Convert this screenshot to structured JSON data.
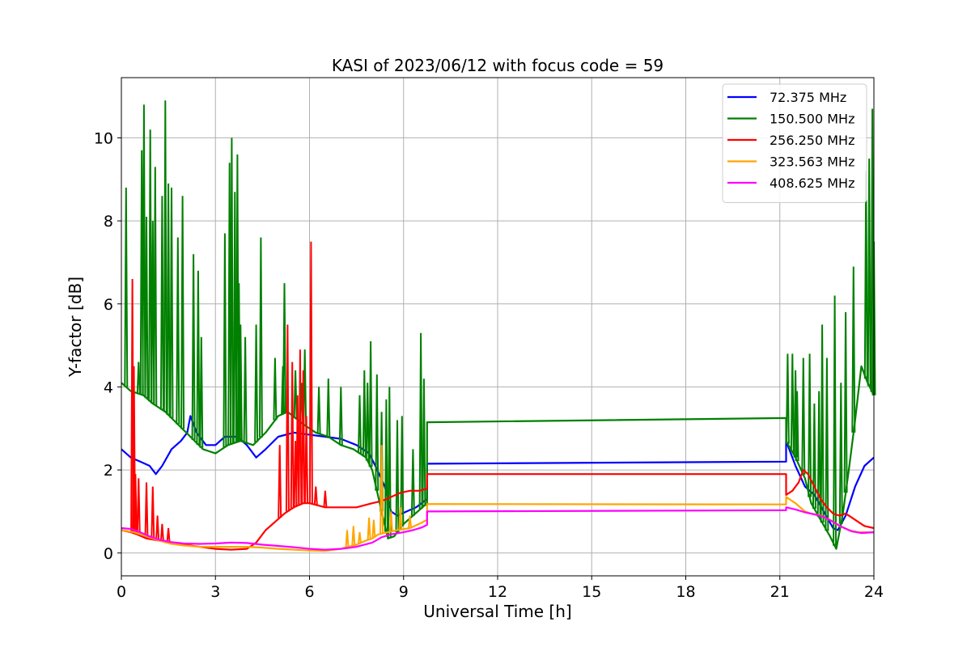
{
  "chart_data": {
    "type": "line",
    "title": "KASI of 2023/06/12 with focus code = 59",
    "xlabel": "Universal Time [h]",
    "ylabel": "Y-factor [dB]",
    "xlim": [
      0,
      24
    ],
    "ylim": [
      -0.55,
      11.45
    ],
    "xticks": [
      0,
      3,
      6,
      9,
      12,
      15,
      18,
      21,
      24
    ],
    "xtick_labels": [
      "0",
      "3",
      "6",
      "9",
      "12",
      "15",
      "18",
      "21",
      "24"
    ],
    "yticks": [
      0,
      2,
      4,
      6,
      8,
      10
    ],
    "ytick_labels": [
      "0",
      "2",
      "4",
      "6",
      "8",
      "10"
    ],
    "grid": true,
    "legend_position": "top-right",
    "series": [
      {
        "name": " 72.375 MHz",
        "color": "#0000ff",
        "points": [
          [
            0,
            2.5
          ],
          [
            0.3,
            2.3
          ],
          [
            0.6,
            2.2
          ],
          [
            0.9,
            2.1
          ],
          [
            1.1,
            1.9
          ],
          [
            1.3,
            2.1
          ],
          [
            1.6,
            2.5
          ],
          [
            1.9,
            2.7
          ],
          [
            2.1,
            2.9
          ],
          [
            2.2,
            3.3
          ],
          [
            2.4,
            2.9
          ],
          [
            2.7,
            2.6
          ],
          [
            3.0,
            2.6
          ],
          [
            3.3,
            2.8
          ],
          [
            3.7,
            2.8
          ],
          [
            4.0,
            2.6
          ],
          [
            4.3,
            2.3
          ],
          [
            4.6,
            2.5
          ],
          [
            5.0,
            2.8
          ],
          [
            5.5,
            2.9
          ],
          [
            6.0,
            2.85
          ],
          [
            6.5,
            2.8
          ],
          [
            7.0,
            2.75
          ],
          [
            7.5,
            2.6
          ],
          [
            7.9,
            2.4
          ],
          [
            8.1,
            2.1
          ],
          [
            8.4,
            1.6
          ],
          [
            8.6,
            1.0
          ],
          [
            8.8,
            0.9
          ],
          [
            9.1,
            1.0
          ],
          [
            9.4,
            1.1
          ],
          [
            9.75,
            1.3
          ],
          [
            9.75,
            2.15
          ],
          [
            21.2,
            2.2
          ],
          [
            21.2,
            2.7
          ],
          [
            21.5,
            2.1
          ],
          [
            21.8,
            1.6
          ],
          [
            22.1,
            1.4
          ],
          [
            22.4,
            1.0
          ],
          [
            22.7,
            0.6
          ],
          [
            22.85,
            0.55
          ],
          [
            23.1,
            0.9
          ],
          [
            23.4,
            1.6
          ],
          [
            23.7,
            2.1
          ],
          [
            24.0,
            2.3
          ]
        ],
        "spikes": []
      },
      {
        "name": "150.500 MHz",
        "color": "#008000",
        "points": [
          [
            0,
            4.1
          ],
          [
            0.3,
            3.9
          ],
          [
            0.7,
            3.8
          ],
          [
            1.0,
            3.6
          ],
          [
            1.4,
            3.4
          ],
          [
            1.8,
            3.1
          ],
          [
            2.2,
            2.8
          ],
          [
            2.6,
            2.5
          ],
          [
            3.0,
            2.4
          ],
          [
            3.4,
            2.6
          ],
          [
            3.8,
            2.7
          ],
          [
            4.2,
            2.6
          ],
          [
            4.6,
            2.9
          ],
          [
            5.0,
            3.3
          ],
          [
            5.3,
            3.4
          ],
          [
            5.8,
            3.1
          ],
          [
            6.2,
            2.9
          ],
          [
            6.6,
            2.8
          ],
          [
            7.0,
            2.6
          ],
          [
            7.4,
            2.5
          ],
          [
            7.8,
            2.3
          ],
          [
            8.0,
            2.0
          ],
          [
            8.3,
            1.0
          ],
          [
            8.5,
            0.35
          ],
          [
            8.7,
            0.4
          ],
          [
            9.0,
            0.7
          ],
          [
            9.3,
            0.9
          ],
          [
            9.6,
            1.1
          ],
          [
            9.75,
            1.2
          ],
          [
            9.75,
            3.15
          ],
          [
            21.2,
            3.25
          ],
          [
            21.2,
            2.7
          ],
          [
            21.5,
            2.3
          ],
          [
            21.8,
            1.8
          ],
          [
            22.0,
            1.2
          ],
          [
            22.3,
            0.8
          ],
          [
            22.6,
            0.4
          ],
          [
            22.8,
            0.1
          ],
          [
            23.0,
            0.9
          ],
          [
            23.2,
            2.0
          ],
          [
            23.4,
            3.2
          ],
          [
            23.6,
            4.5
          ],
          [
            23.8,
            4.1
          ],
          [
            24.0,
            3.8
          ]
        ],
        "spikes": [
          [
            0.15,
            8.8
          ],
          [
            0.55,
            4.6
          ],
          [
            0.65,
            9.7
          ],
          [
            0.72,
            10.8
          ],
          [
            0.8,
            8.1
          ],
          [
            0.92,
            10.2
          ],
          [
            1.0,
            8.0
          ],
          [
            1.08,
            9.3
          ],
          [
            1.3,
            8.6
          ],
          [
            1.4,
            10.9
          ],
          [
            1.5,
            8.9
          ],
          [
            1.6,
            8.8
          ],
          [
            1.8,
            7.6
          ],
          [
            1.95,
            8.6
          ],
          [
            2.3,
            7.2
          ],
          [
            2.45,
            6.8
          ],
          [
            2.55,
            5.2
          ],
          [
            3.3,
            7.7
          ],
          [
            3.45,
            9.4
          ],
          [
            3.52,
            10.0
          ],
          [
            3.62,
            8.7
          ],
          [
            3.7,
            9.6
          ],
          [
            3.75,
            6.5
          ],
          [
            3.8,
            5.5
          ],
          [
            3.95,
            5.2
          ],
          [
            4.3,
            5.5
          ],
          [
            4.45,
            7.6
          ],
          [
            4.9,
            4.7
          ],
          [
            5.15,
            4.5
          ],
          [
            5.2,
            6.5
          ],
          [
            5.55,
            4.4
          ],
          [
            5.75,
            4.1
          ],
          [
            5.85,
            4.9
          ],
          [
            6.3,
            4.0
          ],
          [
            6.6,
            4.2
          ],
          [
            7.0,
            4.0
          ],
          [
            7.6,
            3.8
          ],
          [
            7.75,
            4.4
          ],
          [
            7.85,
            4.1
          ],
          [
            7.95,
            5.1
          ],
          [
            8.15,
            4.3
          ],
          [
            8.3,
            3.4
          ],
          [
            8.45,
            3.7
          ],
          [
            8.55,
            4.0
          ],
          [
            8.8,
            3.2
          ],
          [
            8.95,
            3.3
          ],
          [
            9.3,
            2.5
          ],
          [
            9.55,
            5.3
          ],
          [
            9.65,
            4.2
          ],
          [
            21.25,
            4.8
          ],
          [
            21.4,
            4.8
          ],
          [
            21.5,
            4.4
          ],
          [
            21.55,
            3.9
          ],
          [
            21.75,
            4.7
          ],
          [
            21.95,
            4.8
          ],
          [
            22.1,
            3.6
          ],
          [
            22.25,
            3.9
          ],
          [
            22.35,
            5.5
          ],
          [
            22.5,
            4.7
          ],
          [
            22.75,
            6.2
          ],
          [
            22.95,
            4.1
          ],
          [
            23.1,
            5.8
          ],
          [
            23.35,
            6.9
          ],
          [
            23.75,
            9.2
          ],
          [
            23.85,
            9.5
          ],
          [
            23.95,
            10.7
          ],
          [
            24.0,
            7.5
          ]
        ]
      },
      {
        "name": "256.250 MHz",
        "color": "#ff0000",
        "points": [
          [
            0,
            0.55
          ],
          [
            0.3,
            0.5
          ],
          [
            0.5,
            0.45
          ],
          [
            0.8,
            0.35
          ],
          [
            1.2,
            0.3
          ],
          [
            1.6,
            0.25
          ],
          [
            2.0,
            0.2
          ],
          [
            2.5,
            0.15
          ],
          [
            3.0,
            0.1
          ],
          [
            3.5,
            0.08
          ],
          [
            4.0,
            0.1
          ],
          [
            4.3,
            0.25
          ],
          [
            4.6,
            0.55
          ],
          [
            4.9,
            0.75
          ],
          [
            5.2,
            0.95
          ],
          [
            5.5,
            1.1
          ],
          [
            5.8,
            1.2
          ],
          [
            6.0,
            1.2
          ],
          [
            6.5,
            1.1
          ],
          [
            7.0,
            1.1
          ],
          [
            7.5,
            1.1
          ],
          [
            8.0,
            1.2
          ],
          [
            8.3,
            1.25
          ],
          [
            8.6,
            1.35
          ],
          [
            8.9,
            1.45
          ],
          [
            9.2,
            1.5
          ],
          [
            9.5,
            1.5
          ],
          [
            9.75,
            1.55
          ],
          [
            9.75,
            1.9
          ],
          [
            21.2,
            1.9
          ],
          [
            21.2,
            1.4
          ],
          [
            21.4,
            1.5
          ],
          [
            21.6,
            1.7
          ],
          [
            21.75,
            2.0
          ],
          [
            21.9,
            1.9
          ],
          [
            22.1,
            1.6
          ],
          [
            22.3,
            1.3
          ],
          [
            22.5,
            1.1
          ],
          [
            22.7,
            0.95
          ],
          [
            22.9,
            0.9
          ],
          [
            23.1,
            0.95
          ],
          [
            23.3,
            0.85
          ],
          [
            23.5,
            0.75
          ],
          [
            23.7,
            0.65
          ],
          [
            24.0,
            0.6
          ]
        ],
        "spikes": [
          [
            0.35,
            6.6
          ],
          [
            0.4,
            4.5
          ],
          [
            0.45,
            1.9
          ],
          [
            0.55,
            1.8
          ],
          [
            0.8,
            1.7
          ],
          [
            1.0,
            1.6
          ],
          [
            1.15,
            0.9
          ],
          [
            1.3,
            0.7
          ],
          [
            1.5,
            0.6
          ],
          [
            5.05,
            2.6
          ],
          [
            5.3,
            5.5
          ],
          [
            5.45,
            4.6
          ],
          [
            5.55,
            2.7
          ],
          [
            5.62,
            3.8
          ],
          [
            5.7,
            4.9
          ],
          [
            5.8,
            4.4
          ],
          [
            5.9,
            3.3
          ],
          [
            6.05,
            7.5
          ],
          [
            6.2,
            1.6
          ],
          [
            6.5,
            1.5
          ]
        ]
      },
      {
        "name": "323.563 MHz",
        "color": "#ffa500",
        "points": [
          [
            0,
            0.55
          ],
          [
            0.4,
            0.5
          ],
          [
            0.8,
            0.4
          ],
          [
            1.2,
            0.3
          ],
          [
            1.6,
            0.22
          ],
          [
            2.0,
            0.18
          ],
          [
            2.5,
            0.15
          ],
          [
            3.0,
            0.15
          ],
          [
            3.5,
            0.15
          ],
          [
            4.0,
            0.15
          ],
          [
            4.5,
            0.13
          ],
          [
            5.0,
            0.1
          ],
          [
            5.5,
            0.08
          ],
          [
            6.0,
            0.06
          ],
          [
            6.5,
            0.05
          ],
          [
            7.0,
            0.1
          ],
          [
            7.5,
            0.2
          ],
          [
            7.8,
            0.3
          ],
          [
            8.0,
            0.35
          ],
          [
            8.2,
            0.45
          ],
          [
            8.5,
            0.5
          ],
          [
            8.8,
            0.55
          ],
          [
            9.2,
            0.6
          ],
          [
            9.5,
            0.7
          ],
          [
            9.75,
            0.8
          ],
          [
            9.75,
            1.18
          ],
          [
            21.2,
            1.17
          ],
          [
            21.2,
            1.35
          ],
          [
            21.5,
            1.2
          ],
          [
            21.8,
            1.0
          ],
          [
            22.0,
            0.95
          ],
          [
            22.3,
            0.9
          ],
          [
            22.6,
            0.8
          ],
          [
            22.9,
            0.65
          ],
          [
            23.2,
            0.55
          ],
          [
            23.5,
            0.5
          ],
          [
            23.8,
            0.5
          ],
          [
            24.0,
            0.5
          ]
        ],
        "spikes": [
          [
            7.2,
            0.55
          ],
          [
            7.4,
            0.65
          ],
          [
            7.6,
            0.5
          ],
          [
            7.9,
            0.85
          ],
          [
            8.05,
            0.8
          ],
          [
            8.3,
            2.6
          ],
          [
            8.6,
            1.0
          ],
          [
            8.9,
            1.1
          ],
          [
            9.2,
            0.9
          ]
        ]
      },
      {
        "name": "408.625 MHz",
        "color": "#ff00ff",
        "points": [
          [
            0,
            0.6
          ],
          [
            0.3,
            0.58
          ],
          [
            0.6,
            0.5
          ],
          [
            0.9,
            0.4
          ],
          [
            1.2,
            0.32
          ],
          [
            1.6,
            0.26
          ],
          [
            2.0,
            0.23
          ],
          [
            2.5,
            0.22
          ],
          [
            3.0,
            0.23
          ],
          [
            3.5,
            0.25
          ],
          [
            4.0,
            0.24
          ],
          [
            4.5,
            0.2
          ],
          [
            5.0,
            0.17
          ],
          [
            5.5,
            0.14
          ],
          [
            6.0,
            0.1
          ],
          [
            6.5,
            0.08
          ],
          [
            7.0,
            0.1
          ],
          [
            7.5,
            0.15
          ],
          [
            8.0,
            0.25
          ],
          [
            8.3,
            0.38
          ],
          [
            8.6,
            0.45
          ],
          [
            9.0,
            0.5
          ],
          [
            9.3,
            0.55
          ],
          [
            9.6,
            0.62
          ],
          [
            9.75,
            0.68
          ],
          [
            9.75,
            1.0
          ],
          [
            21.2,
            1.03
          ],
          [
            21.2,
            1.1
          ],
          [
            21.5,
            1.05
          ],
          [
            21.8,
            0.98
          ],
          [
            22.1,
            0.93
          ],
          [
            22.4,
            0.87
          ],
          [
            22.7,
            0.75
          ],
          [
            23.0,
            0.62
          ],
          [
            23.3,
            0.52
          ],
          [
            23.6,
            0.48
          ],
          [
            24.0,
            0.5
          ]
        ],
        "spikes": []
      }
    ]
  }
}
